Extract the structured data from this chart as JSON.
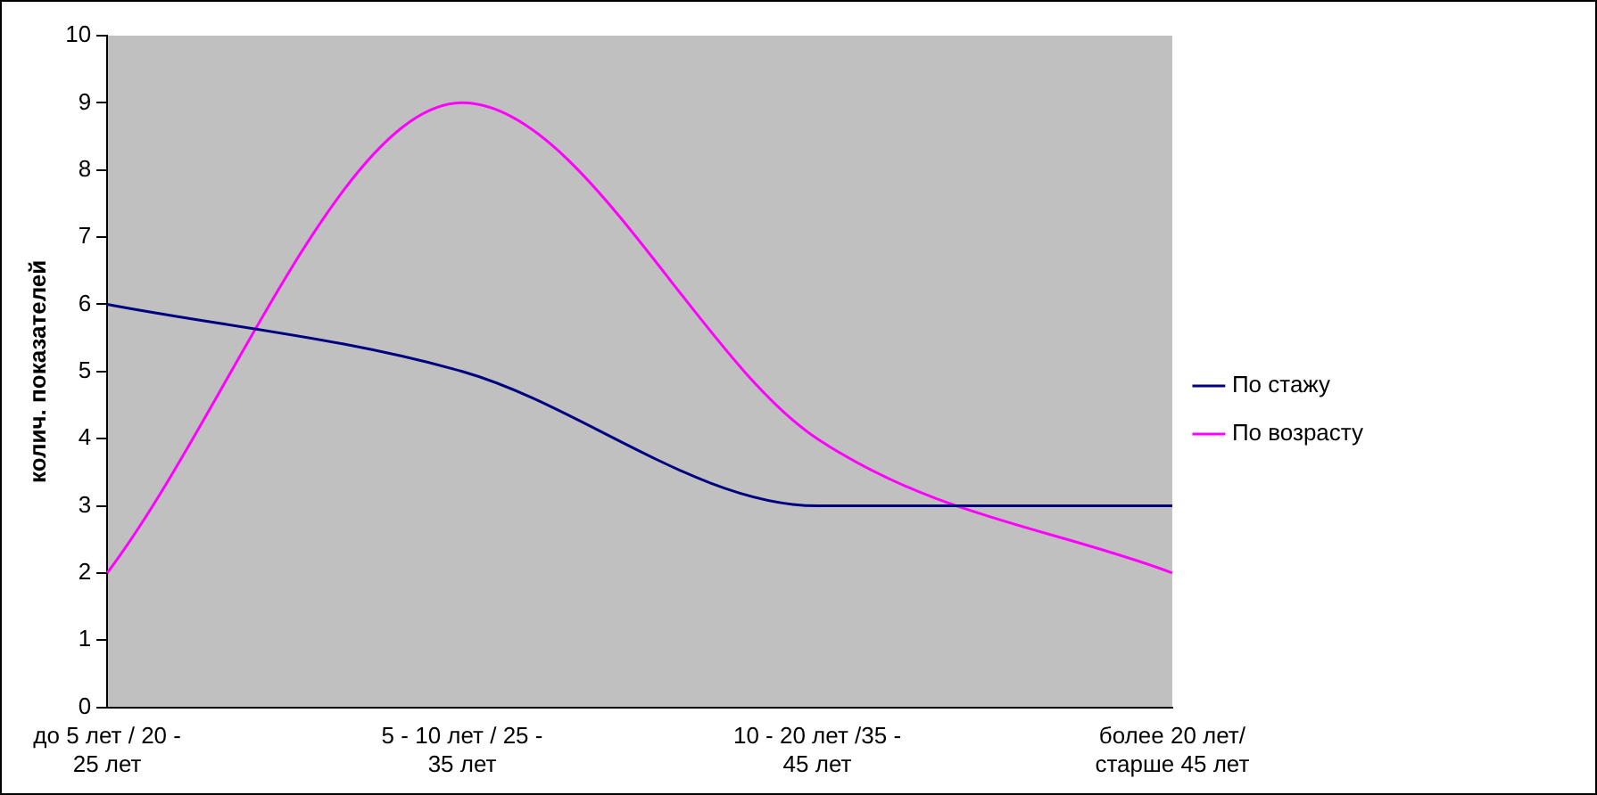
{
  "chart_data": {
    "type": "line",
    "ylabel": "колич. показателей",
    "categories": [
      "до 5 лет / 20 - 25 лет",
      "5 - 10 лет / 25 - 35 лет",
      "10 - 20 лет /35 - 45 лет",
      "более 20 лет/ старше 45 лет"
    ],
    "series": [
      {
        "name": "По стажу",
        "color": "#000080",
        "values": [
          6,
          5,
          3,
          3
        ]
      },
      {
        "name": "По возрасту",
        "color": "#ff00ff",
        "values": [
          2,
          9,
          4,
          2
        ]
      }
    ],
    "ylim": [
      0,
      10
    ],
    "yticks": [
      0,
      1,
      2,
      3,
      4,
      5,
      6,
      7,
      8,
      9,
      10
    ],
    "grid": false,
    "legend": "right",
    "marker": "none",
    "line_style": "solid"
  }
}
